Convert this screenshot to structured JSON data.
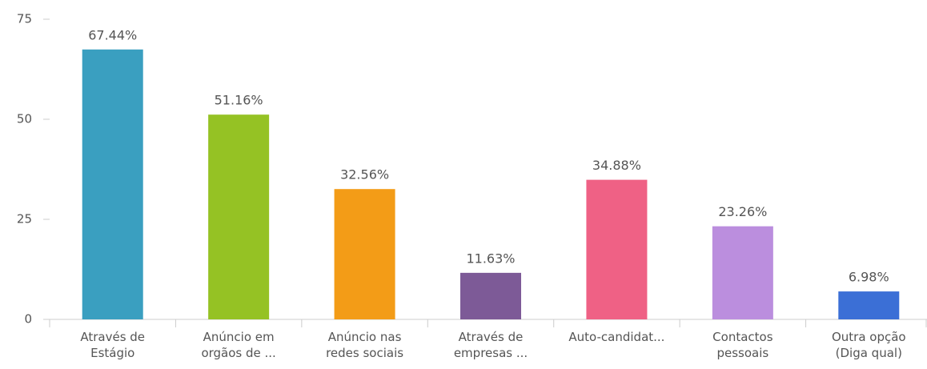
{
  "chart_data": {
    "type": "bar",
    "categories": [
      [
        "Através de",
        "Estágio"
      ],
      [
        "Anúncio em",
        "orgãos de ..."
      ],
      [
        "Anúncio nas",
        "redes sociais"
      ],
      [
        "Através de",
        "empresas ..."
      ],
      [
        "Auto-candidat..."
      ],
      [
        "Contactos",
        "pessoais"
      ],
      [
        "Outra opção",
        "(Diga qual)"
      ]
    ],
    "values": [
      67.44,
      51.16,
      32.56,
      11.63,
      34.88,
      23.26,
      6.98
    ],
    "value_labels": [
      "67.44%",
      "51.16%",
      "32.56%",
      "11.63%",
      "34.88%",
      "23.26%",
      "6.98%"
    ],
    "colors": [
      "#3a9fc0",
      "#95c224",
      "#f39c17",
      "#7d5a97",
      "#ef6185",
      "#bb8ede",
      "#3b6fd6"
    ],
    "ylim": [
      0,
      75
    ],
    "yticks": [
      0,
      25,
      50,
      75
    ],
    "grid": false
  }
}
